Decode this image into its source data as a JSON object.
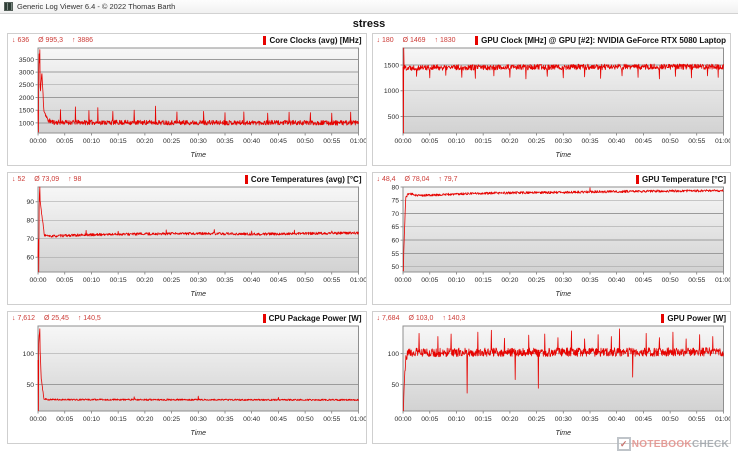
{
  "window": {
    "title": "Generic Log Viewer 6.4 - © 2022 Thomas Barth"
  },
  "header": {
    "title": "stress"
  },
  "watermark": {
    "icon": "check-icon",
    "prefix": "NOTEBOOK",
    "suffix": "CHECK"
  },
  "colors": {
    "series": "#e60300",
    "stats_text": "#cc3b36",
    "legend_marker": "#e60300",
    "grid_line": "#9b9b9b",
    "plot_border": "#8f8f8f",
    "plot_bg_top": "#f7f7f7",
    "plot_bg_bottom": "#d2d2d2",
    "watermark_red": "#e28d88",
    "watermark_gray": "#9fa5ab"
  },
  "time_axis": {
    "ticks": [
      "00:00",
      "00:05",
      "00:10",
      "00:15",
      "00:20",
      "00:25",
      "00:30",
      "00:35",
      "00:40",
      "00:45",
      "00:50",
      "00:55",
      "01:00"
    ],
    "label": "Time"
  },
  "chart_data": [
    {
      "type": "line",
      "title": "Core Clocks (avg) [MHz]",
      "stats": {
        "min": "636",
        "avg": "995,3",
        "max": "3886"
      },
      "min_symbol": "↓",
      "avg_symbol": "Ø",
      "max_symbol": "↑",
      "xlabel": "Time",
      "x_range_minutes": [
        0,
        60
      ],
      "ylim": [
        600,
        3950
      ],
      "yticks": [
        1000,
        1500,
        2000,
        2500,
        3000,
        3500
      ],
      "baseline": [
        [
          0,
          1500
        ],
        [
          0.2,
          3700
        ],
        [
          0.45,
          2200
        ],
        [
          0.7,
          3000
        ],
        [
          1.1,
          1500
        ],
        [
          1.8,
          1100
        ],
        [
          3,
          1020
        ],
        [
          60,
          1000
        ]
      ],
      "noise_amp": 95,
      "spikes": [
        [
          0.08,
          636
        ],
        [
          0.3,
          3886
        ],
        [
          4.2,
          1520
        ],
        [
          7,
          1630
        ],
        [
          9.5,
          1480
        ],
        [
          11.2,
          1600
        ],
        [
          14,
          1450
        ],
        [
          18,
          1500
        ],
        [
          22,
          1660
        ],
        [
          26,
          1430
        ],
        [
          31,
          1450
        ],
        [
          35,
          1400
        ],
        [
          38.5,
          1430
        ],
        [
          43,
          1380
        ],
        [
          47,
          1420
        ],
        [
          51,
          1400
        ],
        [
          55,
          1380
        ],
        [
          58.5,
          1420
        ]
      ],
      "seed": 11
    },
    {
      "type": "line",
      "title": "GPU Clock [MHz] @ GPU [#2]: NVIDIA GeForce RTX 5080 Laptop",
      "stats": {
        "min": "180",
        "avg": "1469",
        "max": "1830"
      },
      "min_symbol": "↓",
      "avg_symbol": "Ø",
      "max_symbol": "↑",
      "xlabel": "Time",
      "x_range_minutes": [
        0,
        60
      ],
      "ylim": [
        180,
        1830
      ],
      "yticks": [
        500,
        1000,
        1500
      ],
      "baseline": [
        [
          0,
          1450
        ],
        [
          60,
          1470
        ]
      ],
      "noise_amp": 55,
      "spikes": [
        [
          0.06,
          180
        ],
        [
          0.12,
          1830
        ],
        [
          2.5,
          1280
        ],
        [
          5,
          1250
        ],
        [
          8,
          1300
        ],
        [
          11,
          1260
        ],
        [
          13.5,
          1240
        ],
        [
          17,
          1290
        ],
        [
          20,
          1260
        ],
        [
          23,
          1230
        ],
        [
          27,
          1280
        ],
        [
          30,
          1250
        ],
        [
          34,
          1270
        ],
        [
          37,
          1240
        ],
        [
          41,
          1290
        ],
        [
          44,
          1260
        ],
        [
          48,
          1230
        ],
        [
          51,
          1280
        ],
        [
          54,
          1250
        ],
        [
          57,
          1290
        ],
        [
          59,
          1260
        ]
      ],
      "seed": 22
    },
    {
      "type": "line",
      "title": "Core Temperatures (avg) [°C]",
      "stats": {
        "min": "52",
        "avg": "73,09",
        "max": "98"
      },
      "min_symbol": "↓",
      "avg_symbol": "Ø",
      "max_symbol": "↑",
      "xlabel": "Time",
      "x_range_minutes": [
        0,
        60
      ],
      "ylim": [
        52,
        98
      ],
      "yticks": [
        60,
        70,
        80,
        90
      ],
      "baseline": [
        [
          0,
          60
        ],
        [
          0.25,
          95
        ],
        [
          0.6,
          85
        ],
        [
          1.2,
          72
        ],
        [
          2,
          71.3
        ],
        [
          6,
          71.8
        ],
        [
          12,
          72.3
        ],
        [
          20,
          72.6
        ],
        [
          30,
          72.8
        ],
        [
          42,
          72.5
        ],
        [
          52,
          72.9
        ],
        [
          60,
          73.2
        ]
      ],
      "noise_amp": 0.7,
      "spikes": [
        [
          0.1,
          52
        ],
        [
          0.35,
          98
        ],
        [
          9,
          74.5
        ],
        [
          15,
          74
        ],
        [
          24,
          74.8
        ],
        [
          33,
          75
        ],
        [
          40,
          74.2
        ],
        [
          48,
          74.6
        ],
        [
          55,
          74.2
        ]
      ],
      "seed": 33
    },
    {
      "type": "line",
      "title": "GPU Temperature [°C]",
      "stats": {
        "min": "48,4",
        "avg": "78,04",
        "max": "79,7"
      },
      "min_symbol": "↓",
      "avg_symbol": "Ø",
      "max_symbol": "↑",
      "xlabel": "Time",
      "x_range_minutes": [
        0,
        60
      ],
      "ylim": [
        48,
        80
      ],
      "yticks": [
        50,
        55,
        60,
        65,
        70,
        75,
        80
      ],
      "baseline": [
        [
          0,
          48.4
        ],
        [
          0.5,
          76
        ],
        [
          1,
          77.5
        ],
        [
          3,
          76.8
        ],
        [
          6,
          77
        ],
        [
          12,
          77.5
        ],
        [
          20,
          77.8
        ],
        [
          30,
          78
        ],
        [
          40,
          78.3
        ],
        [
          50,
          78.5
        ],
        [
          60,
          78.6
        ]
      ],
      "noise_amp": 0.45,
      "spikes": [
        [
          0.05,
          48.4
        ],
        [
          35,
          79.7
        ]
      ],
      "seed": 44
    },
    {
      "type": "line",
      "title": "CPU Package Power [W]",
      "stats": {
        "min": "7,612",
        "avg": "25,45",
        "max": "140,5"
      },
      "min_symbol": "↓",
      "avg_symbol": "Ø",
      "max_symbol": "↑",
      "xlabel": "Time",
      "x_range_minutes": [
        0,
        60
      ],
      "ylim": [
        7,
        145
      ],
      "yticks": [
        50,
        100
      ],
      "baseline": [
        [
          0,
          90
        ],
        [
          0.25,
          138
        ],
        [
          0.6,
          60
        ],
        [
          1.1,
          27
        ],
        [
          2,
          25.5
        ],
        [
          60,
          25
        ]
      ],
      "noise_amp": 1.3,
      "spikes": [
        [
          0.05,
          7.6
        ],
        [
          0.3,
          140.5
        ],
        [
          18,
          30
        ],
        [
          30,
          31
        ],
        [
          45,
          29
        ]
      ],
      "seed": 55
    },
    {
      "type": "line",
      "title": "GPU Power [W]",
      "stats": {
        "min": "7,684",
        "avg": "103,0",
        "max": "140,3"
      },
      "min_symbol": "↓",
      "avg_symbol": "Ø",
      "max_symbol": "↑",
      "xlabel": "Time",
      "x_range_minutes": [
        0,
        60
      ],
      "ylim": [
        7,
        145
      ],
      "yticks": [
        50,
        100
      ],
      "baseline": [
        [
          0,
          9
        ],
        [
          0.5,
          96
        ],
        [
          1.2,
          102
        ],
        [
          60,
          103
        ]
      ],
      "noise_amp": 7,
      "spikes": [
        [
          0.05,
          7.7
        ],
        [
          3,
          133
        ],
        [
          6.5,
          128
        ],
        [
          9,
          132
        ],
        [
          12,
          36
        ],
        [
          14,
          135
        ],
        [
          16.5,
          138
        ],
        [
          19,
          125
        ],
        [
          21,
          58
        ],
        [
          23.5,
          130
        ],
        [
          25.3,
          44
        ],
        [
          26.5,
          132
        ],
        [
          29,
          126
        ],
        [
          31.5,
          137
        ],
        [
          34,
          124
        ],
        [
          36.5,
          131
        ],
        [
          39,
          128
        ],
        [
          40.5,
          140.3
        ],
        [
          43,
          62
        ],
        [
          45.5,
          133
        ],
        [
          48,
          126
        ],
        [
          50.5,
          135
        ],
        [
          53,
          124
        ],
        [
          55.5,
          131
        ],
        [
          58,
          128
        ]
      ],
      "seed": 66
    }
  ]
}
